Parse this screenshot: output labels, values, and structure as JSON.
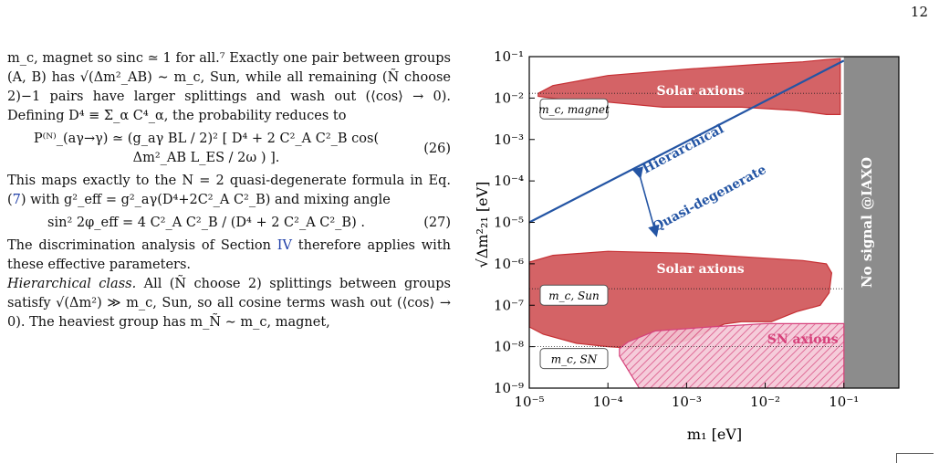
{
  "page_number": "12",
  "text": {
    "p1a": "m_c, magnet so sinc ≃ 1 for all.⁷ Exactly one pair between groups (A, B) has √(Δm²_AB) ∼ m_c, Sun, while all remaining (Ñ choose 2)−1 pairs have larger splittings and wash out (⟨cos⟩ → 0). Defining D⁴ ≡ Σ_α C⁴_α, the probability reduces to",
    "eq26": "P⁽ᴺ⁾_(aγ→γ) ≃ (g_aγ BL / 2)² [ D⁴ + 2 C²_A C²_B cos( Δm²_AB L_ES / 2ω ) ].",
    "eq26_num": "(26)",
    "p2_pre": "This maps exactly to the N = 2 quasi-degenerate formula in Eq. (",
    "p2_ref": "7",
    "p2_post": ") with g²_eff = g²_aγ(D⁴+2C²_A C²_B) and mixing angle",
    "eq27": "sin² 2φ_eff = 4 C²_A C²_B / (D⁴ + 2 C²_A C²_B) .",
    "eq27_num": "(27)",
    "p3_pre": "The discrimination analysis of Section ",
    "p3_ref": "IV",
    "p3_post": " therefore applies with these effective parameters.",
    "p4_lead": "Hierarchical class.",
    "p4_body": " All (Ñ choose 2) splittings between groups satisfy √(Δm²) ≫ m_c, Sun, so all cosine terms wash out (⟨cos⟩ → 0). The heaviest group has m_Ñ ∼ m_c, magnet,"
  },
  "chart_data": {
    "type": "area",
    "xlabel": "m₁ [eV]",
    "ylabel": "√Δm²₂₁ [eV]",
    "x_scale": "log",
    "y_scale": "log",
    "xlim": [
      1e-05,
      0.5
    ],
    "ylim": [
      1e-09,
      0.1
    ],
    "x_ticks": [
      1e-05,
      0.0001,
      0.001,
      0.01,
      0.1
    ],
    "x_tick_labels": [
      "10⁻⁵",
      "10⁻⁴",
      "10⁻³",
      "10⁻²",
      "10⁻¹"
    ],
    "y_ticks": [
      1e-09,
      1e-08,
      1e-07,
      1e-06,
      1e-05,
      0.0001,
      0.001,
      0.01,
      0.1
    ],
    "y_tick_labels": [
      "10⁻⁹",
      "10⁻⁸",
      "10⁻⁷",
      "10⁻⁶",
      "10⁻⁵",
      "10⁻⁴",
      "10⁻³",
      "10⁻²",
      "10⁻¹"
    ],
    "regions": [
      {
        "label": "Solar axions",
        "color": "#c62f33",
        "outline": [
          [
            1.3e-05,
            0.013
          ],
          [
            2e-05,
            0.02
          ],
          [
            0.0001,
            0.035
          ],
          [
            0.001,
            0.05
          ],
          [
            0.008,
            0.065
          ],
          [
            0.03,
            0.075
          ],
          [
            0.06,
            0.085
          ],
          [
            0.09,
            0.09
          ],
          [
            0.09,
            0.004
          ],
          [
            0.06,
            0.004
          ],
          [
            0.025,
            0.005
          ],
          [
            0.005,
            0.006
          ],
          [
            0.0005,
            0.006
          ],
          [
            0.0001,
            0.008
          ],
          [
            3e-05,
            0.009
          ],
          [
            1.3e-05,
            0.011
          ]
        ]
      },
      {
        "label": "Solar axions",
        "color": "#c62f33",
        "outline": [
          [
            1e-05,
            1.1e-06
          ],
          [
            2e-05,
            1.6e-06
          ],
          [
            0.0001,
            2e-06
          ],
          [
            0.001,
            1.8e-06
          ],
          [
            0.008,
            1.4e-06
          ],
          [
            0.03,
            1.2e-06
          ],
          [
            0.06,
            1e-06
          ],
          [
            0.07,
            6e-07
          ],
          [
            0.065,
            2e-07
          ],
          [
            0.05,
            1e-07
          ],
          [
            0.025,
            7e-08
          ],
          [
            0.012,
            4e-08
          ],
          [
            0.005,
            4e-08
          ],
          [
            0.003,
            3.5e-08
          ],
          [
            0.002,
            2.5e-08
          ],
          [
            0.001,
            1.4e-08
          ],
          [
            0.00025,
            9e-09
          ],
          [
            0.0001,
            1e-08
          ],
          [
            4e-05,
            1.2e-08
          ],
          [
            1.5e-05,
            2e-08
          ],
          [
            1e-05,
            3e-08
          ]
        ]
      },
      {
        "label": "SN axions",
        "color": "#d6417a",
        "hatched": true,
        "outline": [
          [
            0.00014,
            9e-09
          ],
          [
            0.00018,
            1.3e-08
          ],
          [
            0.0004,
            2.4e-08
          ],
          [
            0.002,
            3e-08
          ],
          [
            0.01,
            3.6e-08
          ],
          [
            0.1,
            3.6e-08
          ],
          [
            0.1,
            1e-09
          ],
          [
            0.00025,
            1e-09
          ],
          [
            0.00014,
            6e-09
          ]
        ]
      }
    ],
    "lines": [
      {
        "label": "Hierarchical",
        "color": "#2455a4",
        "points": [
          [
            1e-05,
            1e-05
          ],
          [
            0.1,
            0.08
          ]
        ]
      }
    ],
    "line_labels": [
      {
        "text": "Hierarchical",
        "color": "#2455a4"
      },
      {
        "text": "Quasi-degenerate",
        "color": "#2455a4"
      }
    ],
    "reference_lines": [
      {
        "label": "m_c, magnet",
        "y": 0.013
      },
      {
        "label": "m_c, Sun",
        "y": 2.5e-07
      },
      {
        "label": "m_c, SN",
        "y": 1e-08
      }
    ],
    "excluded_band": {
      "label": "No signal @IAXO",
      "x_from": 0.1,
      "x_to": 0.5,
      "color": "#8c8c8c"
    },
    "arrow": {
      "from": [
        0.00025,
        0.00015
      ],
      "to": [
        0.0004,
        6e-06
      ]
    },
    "grid": false,
    "legend": "none"
  }
}
